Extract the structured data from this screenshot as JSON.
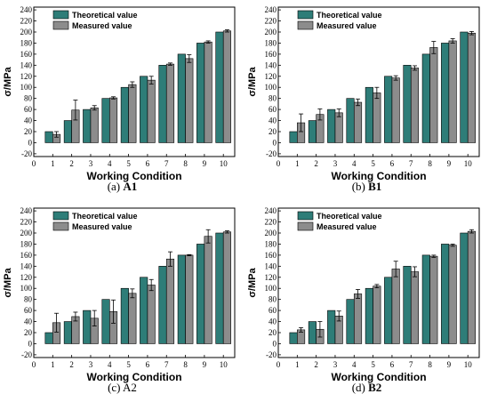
{
  "colors": {
    "theoretical": "#2E7D78",
    "measured": "#8C8C8C",
    "axis": "#000000"
  },
  "chart_data": [
    {
      "type": "bar",
      "caption_letter": "(a)",
      "caption_name": "A1",
      "caption_bold": true,
      "xlabel": "Working Condition",
      "ylabel": "σ/MPa",
      "x_ticks": [
        "0",
        "1",
        "2",
        "3",
        "4",
        "5",
        "6",
        "7",
        "8",
        "9",
        "10"
      ],
      "y_ticks": [
        -20,
        0,
        20,
        40,
        60,
        80,
        100,
        120,
        140,
        160,
        180,
        200,
        220,
        240
      ],
      "ylim": [
        -25,
        245
      ],
      "xlim": [
        0,
        10.6
      ],
      "categories": [
        1,
        2,
        3,
        4,
        5,
        6,
        7,
        8,
        9,
        10
      ],
      "legend_position": "top-left",
      "series": [
        {
          "name": "Theoretical value",
          "values": [
            20,
            40,
            60,
            80,
            100,
            120,
            140,
            160,
            180,
            200
          ]
        },
        {
          "name": "Measured value",
          "values": [
            15,
            59,
            63,
            81,
            105,
            113,
            142,
            152,
            182,
            202
          ],
          "errors": [
            5,
            18,
            4,
            2,
            5,
            7,
            2,
            7,
            2,
            2
          ]
        }
      ]
    },
    {
      "type": "bar",
      "caption_letter": "(b)",
      "caption_name": "B1",
      "caption_bold": true,
      "xlabel": "Working Condition",
      "ylabel": "σ/MPa",
      "x_ticks": [
        "0",
        "1",
        "2",
        "3",
        "4",
        "5",
        "6",
        "7",
        "8",
        "9",
        "10"
      ],
      "y_ticks": [
        -20,
        0,
        20,
        40,
        60,
        80,
        100,
        120,
        140,
        160,
        180,
        200,
        220,
        240
      ],
      "ylim": [
        -25,
        245
      ],
      "xlim": [
        0,
        10.6
      ],
      "categories": [
        1,
        2,
        3,
        4,
        5,
        6,
        7,
        8,
        9,
        10
      ],
      "legend_position": "top-left",
      "series": [
        {
          "name": "Theoretical value",
          "values": [
            20,
            40,
            60,
            80,
            100,
            120,
            140,
            160,
            180,
            200
          ]
        },
        {
          "name": "Measured value",
          "values": [
            36,
            51,
            54,
            73,
            90,
            117,
            135,
            172,
            184,
            198
          ],
          "errors": [
            16,
            10,
            7,
            6,
            10,
            4,
            4,
            11,
            4,
            3
          ]
        }
      ]
    },
    {
      "type": "bar",
      "caption_letter": "(c)",
      "caption_name": "A2",
      "caption_bold": false,
      "xlabel": "Working Condition",
      "ylabel": "σ/MPa",
      "x_ticks": [
        "0",
        "1",
        "2",
        "3",
        "4",
        "5",
        "6",
        "7",
        "8",
        "9",
        "10"
      ],
      "y_ticks": [
        -20,
        0,
        20,
        40,
        60,
        80,
        100,
        120,
        140,
        160,
        180,
        200,
        220,
        240
      ],
      "ylim": [
        -25,
        245
      ],
      "xlim": [
        0,
        10.6
      ],
      "categories": [
        1,
        2,
        3,
        4,
        5,
        6,
        7,
        8,
        9,
        10
      ],
      "legend_position": "top-left",
      "series": [
        {
          "name": "Theoretical value",
          "values": [
            20,
            40,
            60,
            80,
            100,
            120,
            140,
            160,
            180,
            200
          ]
        },
        {
          "name": "Measured value",
          "values": [
            38,
            49,
            46,
            58,
            91,
            106,
            153,
            160,
            194,
            202
          ],
          "errors": [
            17,
            8,
            14,
            21,
            8,
            10,
            13,
            1,
            12,
            2
          ]
        }
      ]
    },
    {
      "type": "bar",
      "caption_letter": "(d)",
      "caption_name": "B2",
      "caption_bold": true,
      "xlabel": "Working Condition",
      "ylabel": "σ/MPa",
      "x_ticks": [
        "0",
        "1",
        "2",
        "3",
        "4",
        "5",
        "6",
        "7",
        "8",
        "9",
        "10"
      ],
      "y_ticks": [
        -20,
        0,
        20,
        40,
        60,
        80,
        100,
        120,
        140,
        160,
        180,
        200,
        220,
        240
      ],
      "ylim": [
        -25,
        245
      ],
      "xlim": [
        0,
        10.6
      ],
      "categories": [
        1,
        2,
        3,
        4,
        5,
        6,
        7,
        8,
        9,
        10
      ],
      "legend_position": "top-left",
      "series": [
        {
          "name": "Theoretical value",
          "values": [
            20,
            40,
            60,
            80,
            100,
            120,
            140,
            160,
            180,
            200
          ]
        },
        {
          "name": "Measured value",
          "values": [
            25,
            26,
            50,
            90,
            104,
            135,
            130,
            158,
            178,
            203
          ],
          "errors": [
            4,
            14,
            9,
            8,
            3,
            14,
            9,
            2,
            2,
            3
          ]
        }
      ]
    }
  ]
}
